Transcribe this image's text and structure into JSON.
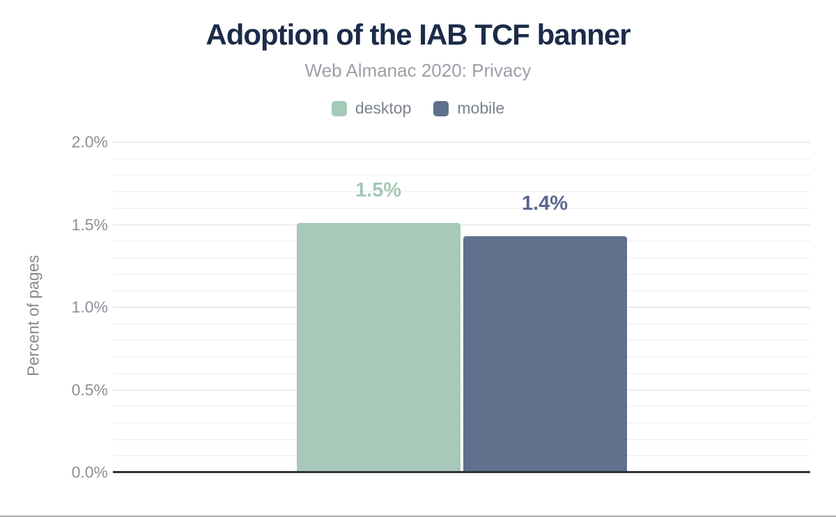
{
  "chart_data": {
    "type": "bar",
    "title": "Adoption of the IAB TCF banner",
    "subtitle": "Web Almanac 2020: Privacy",
    "xlabel": "",
    "ylabel": "Percent of pages",
    "ylim": [
      0,
      2.0
    ],
    "y_ticks": [
      {
        "value": 0.0,
        "label": "0.0%"
      },
      {
        "value": 0.5,
        "label": "0.5%"
      },
      {
        "value": 1.0,
        "label": "1.0%"
      },
      {
        "value": 1.5,
        "label": "1.5%"
      },
      {
        "value": 2.0,
        "label": "2.0%"
      }
    ],
    "y_minor_step": 0.1,
    "y_major_step": 0.5,
    "grid": true,
    "legend_position": "top",
    "series": [
      {
        "name": "desktop",
        "value": 1.51,
        "data_label": "1.5%",
        "color": "#a6c9ba",
        "label_color": "#a4c8b6"
      },
      {
        "name": "mobile",
        "value": 1.43,
        "data_label": "1.4%",
        "color": "#5f718c",
        "label_color": "#56688c"
      }
    ]
  },
  "colors": {
    "title": "#1c2b49",
    "subtitle": "#9ba0a8",
    "legend_label": "#7c828d",
    "tick_label": "#8b9098",
    "axis_label": "#84898f",
    "axis_line": "#2e323a",
    "gridline_minor": "#f4f4f4",
    "gridline_major": "#ececec"
  }
}
